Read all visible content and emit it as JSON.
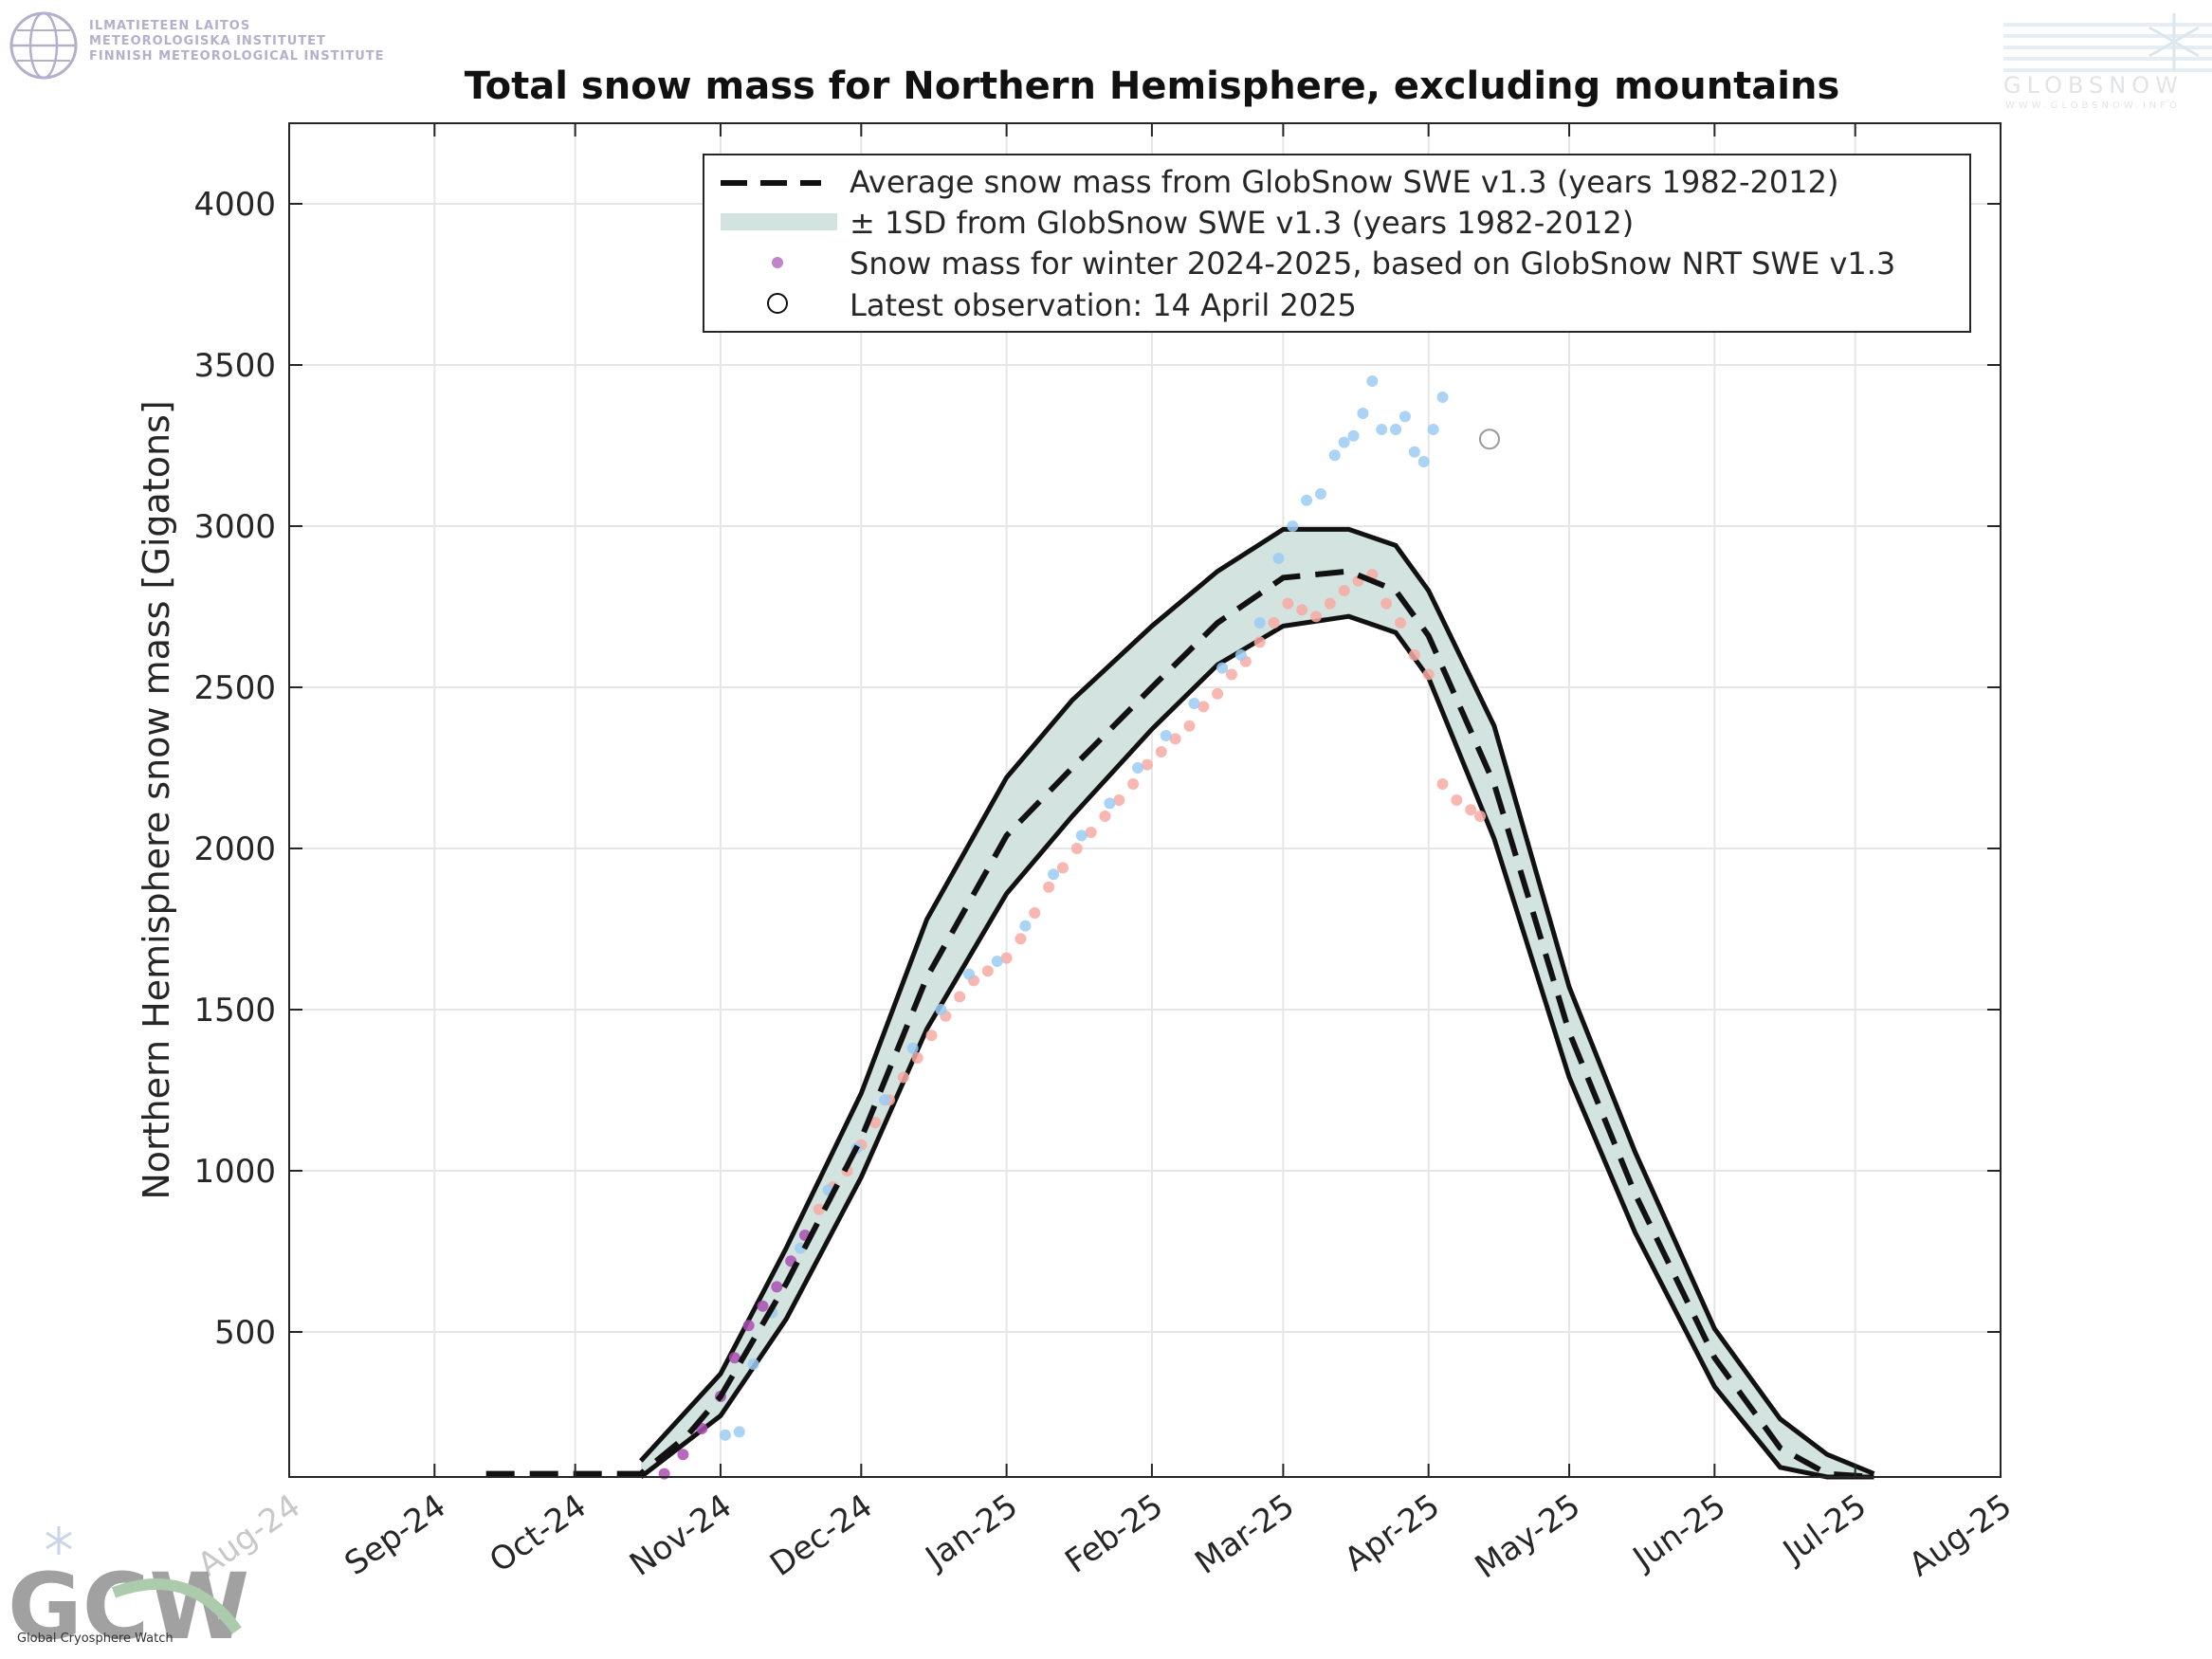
{
  "logos": {
    "fmi_lines": [
      "ILMATIETEEN LAITOS",
      "METEOROLOGISKA INSTITUTET",
      "FINNISH METEOROLOGICAL INSTITUTE"
    ],
    "globsnow_text": "GLOBSNOW",
    "globsnow_url": "WWW.GLOBSNOW.INFO",
    "gcw_text": "GCW",
    "gcw_subtitle": "Global Cryosphere Watch"
  },
  "chart_data": {
    "type": "line",
    "title": "Total snow mass for Northern Hemisphere, excluding mountains",
    "ylabel": "Northern Hemisphere snow mass [Gigatons]",
    "xlabel": "",
    "ylim": [
      50,
      4250
    ],
    "xlim": [
      "2024-08-01",
      "2025-08-01"
    ],
    "yticks": [
      500,
      1000,
      1500,
      2000,
      2500,
      3000,
      3500,
      4000
    ],
    "ytick_labels": [
      "500",
      "1000",
      "1500",
      "2000",
      "2500",
      "3000",
      "3500",
      "4000"
    ],
    "xticks": [
      "2024-08-01",
      "2024-09-01",
      "2024-10-01",
      "2024-11-01",
      "2024-12-01",
      "2025-01-01",
      "2025-02-01",
      "2025-03-01",
      "2025-04-01",
      "2025-05-01",
      "2025-06-01",
      "2025-07-01",
      "2025-08-01"
    ],
    "xtick_labels": [
      "Aug-24",
      "Sep-24",
      "Oct-24",
      "Nov-24",
      "Dec-24",
      "Jan-25",
      "Feb-25",
      "Mar-25",
      "Apr-25",
      "May-25",
      "Jun-25",
      "Jul-25",
      "Aug-25"
    ],
    "grid": true,
    "legend": {
      "placement": "top-right",
      "entries": [
        "Average snow mass from GlobSnow SWE v1.3 (years 1982-2012)",
        "± 1SD from GlobSnow SWE v1.3 (years 1982-2012)",
        "Snow mass for winter 2024-2025, based on GlobSnow NRT SWE v1.3",
        "Latest observation: 14 April 2025"
      ]
    },
    "colors": {
      "band_fill": "#d3e3df",
      "mean_line": "#111111",
      "sd_edge": "#111111",
      "series_early": "#a94fb2",
      "series_blue": "#9ccbf5",
      "series_red": "#f7aaa3"
    },
    "series": [
      {
        "name": "Average snow mass from GlobSnow SWE v1.3 (years 1982-2012)",
        "x": [
          "2024-09-12",
          "2024-10-15",
          "2024-10-25",
          "2024-11-01",
          "2024-11-15",
          "2024-12-01",
          "2024-12-15",
          "2025-01-01",
          "2025-01-15",
          "2025-02-01",
          "2025-02-15",
          "2025-03-01",
          "2025-03-15",
          "2025-03-25",
          "2025-04-01",
          "2025-04-15",
          "2025-05-01",
          "2025-05-15",
          "2025-06-01",
          "2025-06-15",
          "2025-06-25",
          "2025-07-05"
        ],
        "y": [
          60,
          60,
          180,
          300,
          650,
          1100,
          1600,
          2040,
          2250,
          2500,
          2700,
          2840,
          2860,
          2800,
          2660,
          2200,
          1430,
          930,
          420,
          140,
          60,
          50
        ]
      },
      {
        "name": "± 1SD from GlobSnow SWE v1.3 (years 1982-2012)",
        "x": [
          "2024-10-15",
          "2024-11-01",
          "2024-11-15",
          "2024-12-01",
          "2024-12-15",
          "2025-01-01",
          "2025-01-15",
          "2025-02-01",
          "2025-02-15",
          "2025-03-01",
          "2025-03-15",
          "2025-03-25",
          "2025-04-01",
          "2025-04-15",
          "2025-05-01",
          "2025-05-15",
          "2025-06-01",
          "2025-06-15",
          "2025-06-25",
          "2025-07-05"
        ],
        "upper": [
          100,
          370,
          760,
          1240,
          1780,
          2220,
          2460,
          2690,
          2860,
          2990,
          2990,
          2940,
          2800,
          2380,
          1570,
          1060,
          510,
          230,
          120,
          60
        ],
        "lower": [
          50,
          240,
          540,
          980,
          1440,
          1860,
          2100,
          2370,
          2570,
          2690,
          2720,
          2670,
          2530,
          2030,
          1290,
          810,
          330,
          80,
          50,
          50
        ]
      },
      {
        "name": "Snow mass for winter 2024-2025, based on GlobSnow NRT SWE v1.3",
        "points": [
          [
            "2024-10-20",
            60
          ],
          [
            "2024-10-24",
            120
          ],
          [
            "2024-10-28",
            200
          ],
          [
            "2024-11-01",
            300
          ],
          [
            "2024-11-04",
            420
          ],
          [
            "2024-11-07",
            520
          ],
          [
            "2024-11-10",
            580
          ],
          [
            "2024-11-13",
            640
          ],
          [
            "2024-11-16",
            720
          ],
          [
            "2024-11-19",
            800
          ],
          [
            "2024-11-22",
            880
          ],
          [
            "2024-11-25",
            950
          ],
          [
            "2024-11-28",
            1000
          ],
          [
            "2024-12-01",
            1080
          ],
          [
            "2024-12-04",
            1150
          ],
          [
            "2024-12-07",
            1220
          ],
          [
            "2024-12-10",
            1290
          ],
          [
            "2024-12-13",
            1350
          ],
          [
            "2024-12-16",
            1420
          ],
          [
            "2024-12-19",
            1480
          ],
          [
            "2024-12-22",
            1540
          ],
          [
            "2024-12-25",
            1590
          ],
          [
            "2024-12-28",
            1620
          ],
          [
            "2025-01-01",
            1660
          ],
          [
            "2025-01-04",
            1720
          ],
          [
            "2025-01-07",
            1800
          ],
          [
            "2025-01-10",
            1880
          ],
          [
            "2025-01-13",
            1940
          ],
          [
            "2025-01-16",
            2000
          ],
          [
            "2025-01-19",
            2050
          ],
          [
            "2025-01-22",
            2100
          ],
          [
            "2025-01-25",
            2150
          ],
          [
            "2025-01-28",
            2200
          ],
          [
            "2025-01-31",
            2260
          ],
          [
            "2025-02-03",
            2300
          ],
          [
            "2025-02-06",
            2340
          ],
          [
            "2025-02-09",
            2380
          ],
          [
            "2025-02-12",
            2440
          ],
          [
            "2025-02-15",
            2480
          ],
          [
            "2025-02-18",
            2540
          ],
          [
            "2025-02-21",
            2580
          ],
          [
            "2025-02-24",
            2640
          ],
          [
            "2025-02-27",
            2700
          ],
          [
            "2025-03-02",
            2760
          ],
          [
            "2025-03-05",
            2740
          ],
          [
            "2025-03-08",
            2720
          ],
          [
            "2025-03-11",
            2760
          ],
          [
            "2025-03-14",
            2800
          ],
          [
            "2025-03-17",
            2830
          ],
          [
            "2025-03-20",
            2850
          ],
          [
            "2025-03-23",
            2760
          ],
          [
            "2025-03-26",
            2700
          ],
          [
            "2025-03-29",
            2600
          ],
          [
            "2025-04-01",
            2540
          ],
          [
            "2025-04-04",
            2200
          ],
          [
            "2025-04-07",
            2150
          ],
          [
            "2025-04-10",
            2120
          ],
          [
            "2025-04-12",
            2100
          ],
          [
            "2024-11-02",
            180
          ],
          [
            "2024-11-05",
            190
          ],
          [
            "2024-11-08",
            400
          ],
          [
            "2024-11-12",
            560
          ],
          [
            "2024-11-18",
            760
          ],
          [
            "2024-11-24",
            940
          ],
          [
            "2024-11-30",
            1070
          ],
          [
            "2024-12-06",
            1220
          ],
          [
            "2024-12-12",
            1380
          ],
          [
            "2024-12-18",
            1500
          ],
          [
            "2024-12-24",
            1610
          ],
          [
            "2024-12-30",
            1650
          ],
          [
            "2025-01-05",
            1760
          ],
          [
            "2025-01-11",
            1920
          ],
          [
            "2025-01-17",
            2040
          ],
          [
            "2025-01-23",
            2140
          ],
          [
            "2025-01-29",
            2250
          ],
          [
            "2025-02-04",
            2350
          ],
          [
            "2025-02-10",
            2450
          ],
          [
            "2025-02-16",
            2560
          ],
          [
            "2025-02-20",
            2600
          ],
          [
            "2025-02-24",
            2700
          ],
          [
            "2025-02-28",
            2900
          ],
          [
            "2025-03-03",
            3000
          ],
          [
            "2025-03-06",
            3080
          ],
          [
            "2025-03-09",
            3100
          ],
          [
            "2025-03-12",
            3220
          ],
          [
            "2025-03-14",
            3260
          ],
          [
            "2025-03-16",
            3280
          ],
          [
            "2025-03-18",
            3350
          ],
          [
            "2025-03-20",
            3450
          ],
          [
            "2025-03-22",
            3300
          ],
          [
            "2025-03-25",
            3300
          ],
          [
            "2025-03-27",
            3340
          ],
          [
            "2025-03-29",
            3230
          ],
          [
            "2025-03-31",
            3200
          ],
          [
            "2025-04-02",
            3300
          ],
          [
            "2025-04-04",
            3400
          ]
        ]
      }
    ],
    "latest_observation": {
      "date": "2025-04-14",
      "value": 3270
    }
  }
}
